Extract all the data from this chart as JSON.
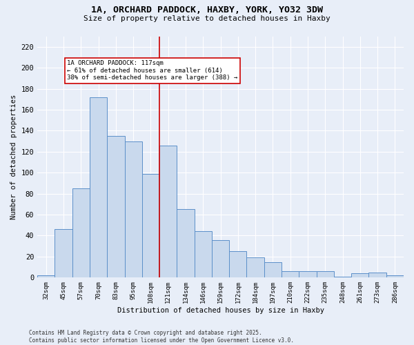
{
  "title_line1": "1A, ORCHARD PADDOCK, HAXBY, YORK, YO32 3DW",
  "title_line2": "Size of property relative to detached houses in Haxby",
  "xlabel": "Distribution of detached houses by size in Haxby",
  "ylabel": "Number of detached properties",
  "bar_labels": [
    "32sqm",
    "45sqm",
    "57sqm",
    "70sqm",
    "83sqm",
    "95sqm",
    "108sqm",
    "121sqm",
    "134sqm",
    "146sqm",
    "159sqm",
    "172sqm",
    "184sqm",
    "197sqm",
    "210sqm",
    "222sqm",
    "235sqm",
    "248sqm",
    "261sqm",
    "273sqm",
    "286sqm"
  ],
  "bar_values": [
    2,
    46,
    85,
    172,
    135,
    130,
    99,
    126,
    65,
    44,
    36,
    25,
    19,
    15,
    6,
    6,
    6,
    1,
    4,
    5,
    2
  ],
  "bar_color": "#c9d9ed",
  "bar_edge_color": "#5b8fc9",
  "vline_color": "#cc0000",
  "vline_xindex": 6.5,
  "annotation_text": "1A ORCHARD PADDOCK: 117sqm\n← 61% of detached houses are smaller (614)\n38% of semi-detached houses are larger (388) →",
  "annotation_box_color": "#ffffff",
  "annotation_box_edge_color": "#cc0000",
  "ylim": [
    0,
    230
  ],
  "yticks": [
    0,
    20,
    40,
    60,
    80,
    100,
    120,
    140,
    160,
    180,
    200,
    220
  ],
  "background_color": "#e8eef8",
  "grid_color": "#ffffff",
  "footer_text": "Contains HM Land Registry data © Crown copyright and database right 2025.\nContains public sector information licensed under the Open Government Licence v3.0."
}
